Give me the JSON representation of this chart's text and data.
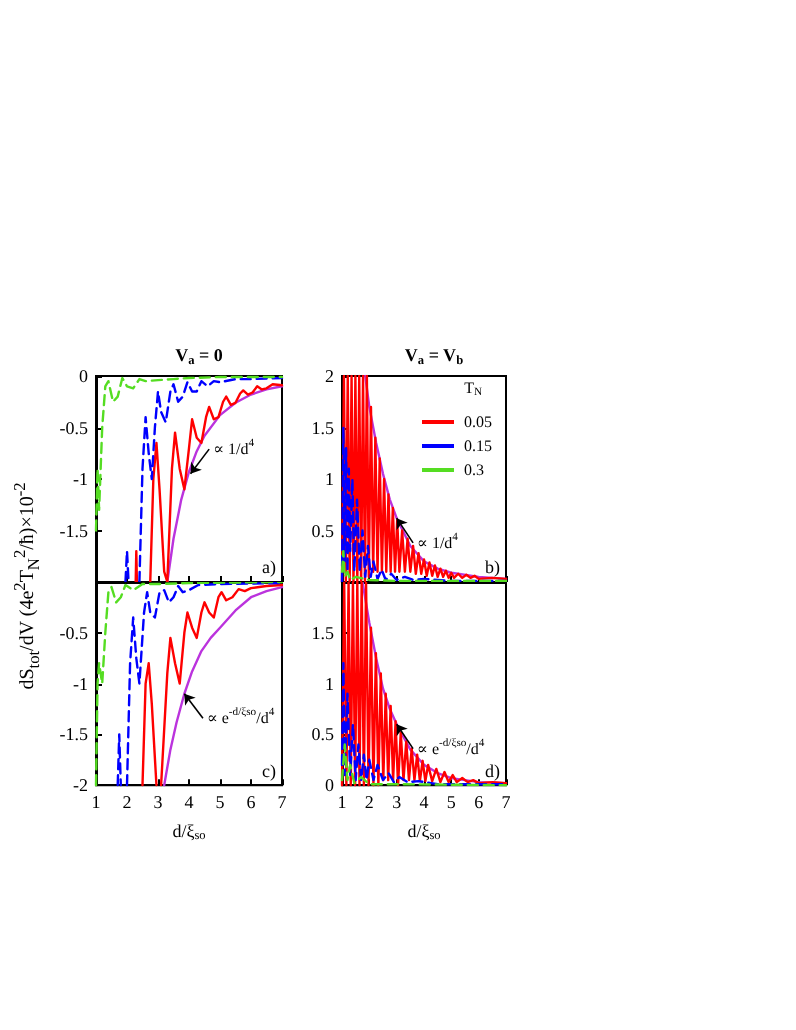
{
  "chart_data": [
    {
      "type": "line",
      "title": "V$_{a}$ = 0",
      "ylabel": "dS$_{tot}$/dV (4e$^{2}$T$_{N}$$^{2}$/ħ)×10$^{-2}$",
      "xlim": [
        1,
        7
      ],
      "xticks": [
        1,
        2,
        3,
        4,
        5,
        6,
        7
      ],
      "ylim": [
        -2,
        0
      ],
      "yticks": [
        {
          "value": -2,
          "label": null
        },
        -1.5,
        -1,
        -0.5,
        0
      ],
      "tick_labels": "y",
      "grid": false,
      "annotations": [
        {
          "text": "∝ 1/d$^{4}$",
          "x": 4.05,
          "y": -0.95
        },
        "a)"
      ],
      "series": [
        {
          "color": "#bb33dd",
          "line_style": "solid",
          "x": [
            3.3,
            3.5,
            3.75,
            4,
            4.25,
            4.5,
            5,
            5.5,
            6,
            6.5,
            7
          ],
          "values": [
            -2,
            -1.58,
            -1.2,
            -0.93,
            -0.73,
            -0.58,
            -0.38,
            -0.26,
            -0.18,
            -0.13,
            -0.1
          ]
        },
        {
          "color": "#ff0000",
          "line_style": "solid",
          "x": [
            2.28,
            2.3,
            2.32,
            2.5,
            2.75,
            2.85,
            2.95,
            3.05,
            3.2,
            3.3,
            3.45,
            3.55,
            3.7,
            3.85,
            4.0,
            4.1,
            4.25,
            4.4,
            4.55,
            4.65,
            4.8,
            4.95,
            5.1,
            5.2,
            5.35,
            5.5,
            5.65,
            5.75,
            5.9,
            6.05,
            6.2,
            6.35,
            6.5,
            6.7,
            7
          ],
          "values": [
            -2,
            -1.7,
            -2,
            null,
            -2,
            -1.0,
            -0.65,
            -1.1,
            -1.9,
            -2,
            -0.9,
            -0.55,
            -0.9,
            -1.1,
            -0.7,
            -0.42,
            -0.6,
            -0.65,
            -0.4,
            -0.3,
            -0.42,
            -0.4,
            -0.25,
            -0.2,
            -0.28,
            -0.26,
            -0.17,
            -0.14,
            -0.18,
            -0.16,
            -0.1,
            -0.13,
            -0.12,
            -0.08,
            -0.09
          ]
        },
        {
          "color": "#0000ff",
          "line_style": "dashed",
          "x": [
            1.95,
            2.0,
            2.05,
            2.2,
            2.4,
            2.5,
            2.6,
            2.7,
            2.8,
            2.9,
            3.0,
            3.1,
            3.25,
            3.4,
            3.5,
            3.65,
            3.8,
            3.95,
            4.1,
            4.25,
            4.4,
            4.6,
            4.8,
            5.0,
            5.5,
            6,
            7
          ],
          "values": [
            -2,
            -1.7,
            -2,
            null,
            -2,
            -0.9,
            -0.4,
            -0.75,
            -1.0,
            -0.5,
            -0.15,
            -0.35,
            -0.45,
            -0.15,
            -0.08,
            -0.25,
            -0.2,
            -0.06,
            -0.15,
            -0.15,
            -0.05,
            -0.1,
            -0.05,
            -0.06,
            -0.03,
            -0.03,
            -0.02
          ]
        },
        {
          "color": "#55dd22",
          "line_style": "dashed",
          "x": [
            1.0,
            1.05,
            1.1,
            1.15,
            1.2,
            1.3,
            1.4,
            1.55,
            1.7,
            1.85,
            2.0,
            2.2,
            2.4,
            2.6,
            3,
            3.5,
            4,
            5,
            7
          ],
          "values": [
            -1.5,
            -0.9,
            -1.3,
            -0.9,
            -0.5,
            -0.1,
            -0.05,
            -0.25,
            -0.2,
            -0.02,
            -0.1,
            -0.12,
            -0.03,
            -0.05,
            -0.04,
            -0.03,
            -0.02,
            -0.01,
            -0.01
          ]
        }
      ]
    },
    {
      "type": "line",
      "title": "V$_{a}$ = V$_{b}$",
      "legend": "top right",
      "legend_title": "T$_{N}$",
      "xlim": [
        1,
        7
      ],
      "xticks": [
        1,
        2,
        3,
        4,
        5,
        6,
        7
      ],
      "ylim": [
        0,
        2
      ],
      "yticks": [
        {
          "value": 0,
          "label": null
        },
        0.5,
        1,
        1.5,
        2
      ],
      "tick_labels": "y",
      "grid": false,
      "annotations": [
        {
          "text": "∝ 1/d$^{4}$",
          "x": 3.0,
          "y": 0.62
        },
        "b)"
      ],
      "series": [
        {
          "color": "#bb33dd",
          "line_style": "solid",
          "x": [
            1.85,
            2,
            2.25,
            2.5,
            2.75,
            3,
            3.5,
            4,
            4.5,
            5,
            6,
            7
          ],
          "values": [
            2,
            1.7,
            1.35,
            1.05,
            0.8,
            0.62,
            0.35,
            0.2,
            0.13,
            0.09,
            0.05,
            0.03
          ]
        },
        {
          "name": "0.05",
          "color": "#ff0000",
          "line_style": "solid",
          "x": [
            1.0,
            1.07,
            1.14,
            1.21,
            1.28,
            1.35,
            1.42,
            1.49,
            1.56,
            1.63,
            1.7,
            1.77,
            1.84,
            1.91,
            1.98,
            2.06,
            2.14,
            2.22,
            2.3,
            2.38,
            2.46,
            2.54,
            2.62,
            2.7,
            2.78,
            2.86,
            2.94,
            3.02,
            3.1,
            3.2,
            3.3,
            3.4,
            3.5,
            3.6,
            3.7,
            3.8,
            3.9,
            4.0,
            4.1,
            4.2,
            4.3,
            4.4,
            4.5,
            4.6,
            4.7,
            4.8,
            4.9,
            5.0,
            5.1,
            5.25,
            5.4,
            5.55,
            5.7,
            5.85,
            6.0,
            6.5,
            7
          ],
          "values": [
            0,
            2,
            0,
            2,
            0,
            2,
            0,
            2,
            0,
            2,
            0,
            2,
            0,
            2,
            0.05,
            1.7,
            0.1,
            1.4,
            0.1,
            1.2,
            0.1,
            1.0,
            0.1,
            0.85,
            0.1,
            0.72,
            0.1,
            0.6,
            0.1,
            0.5,
            0.1,
            0.42,
            0.1,
            0.35,
            0.08,
            0.28,
            0.08,
            0.22,
            0.06,
            0.19,
            0.06,
            0.16,
            0.05,
            0.13,
            0.05,
            0.11,
            0.04,
            0.09,
            0.04,
            0.08,
            0.04,
            0.07,
            0.04,
            0.06,
            0.03,
            0.04,
            0.03
          ]
        },
        {
          "name": "0.15",
          "color": "#0000ff",
          "line_style": "dashed",
          "x": [
            1.0,
            1.05,
            1.1,
            1.15,
            1.2,
            1.25,
            1.3,
            1.38,
            1.45,
            1.55,
            1.65,
            1.75,
            1.85,
            1.95,
            2.05,
            2.15,
            2.3,
            2.45,
            2.6,
            2.8,
            3,
            3.3,
            3.6,
            4,
            5,
            7
          ],
          "values": [
            0,
            1.5,
            0.2,
            1.3,
            0.1,
            1.1,
            0.3,
            1.0,
            0.1,
            0.8,
            0.1,
            0.5,
            0.05,
            0.35,
            0.05,
            0.2,
            0.03,
            0.12,
            0.02,
            0.08,
            0.02,
            0.05,
            0.02,
            0.03,
            0.01,
            0.01
          ]
        },
        {
          "name": "0.3",
          "color": "#55dd22",
          "line_style": "dashed",
          "x": [
            1.0,
            1.05,
            1.1,
            1.2,
            1.3,
            1.5,
            2,
            3,
            7
          ],
          "values": [
            0.1,
            0.3,
            0.05,
            0.1,
            0.02,
            0.05,
            0.02,
            0.01,
            0.01
          ]
        }
      ]
    },
    {
      "type": "line",
      "xlabel": "d/ξ$_{so}$",
      "xlim": [
        1,
        7
      ],
      "xticks": [
        1,
        2,
        3,
        4,
        5,
        6,
        7
      ],
      "ylim": [
        -2,
        0
      ],
      "yticks": [
        -2,
        -1.5,
        -1,
        -0.5,
        {
          "value": 0,
          "label": null
        }
      ],
      "grid": false,
      "annotations": [
        {
          "text": "∝ e$^{-d/ξso}$/d$^{4}$",
          "x": 3.85,
          "y": -1.1
        },
        "c)"
      ],
      "series": [
        {
          "color": "#bb33dd",
          "line_style": "solid",
          "x": [
            3.2,
            3.4,
            3.6,
            3.85,
            4.1,
            4.4,
            4.7,
            5,
            5.5,
            6,
            6.5,
            7
          ],
          "values": [
            -2,
            -1.65,
            -1.38,
            -1.1,
            -0.88,
            -0.68,
            -0.55,
            -0.45,
            -0.28,
            -0.15,
            -0.09,
            -0.05
          ]
        },
        {
          "color": "#ff0000",
          "line_style": "solid",
          "x": [
            2.5,
            2.6,
            2.7,
            2.8,
            2.95,
            3.0,
            3.1,
            3.3,
            3.4,
            3.55,
            3.7,
            3.85,
            3.95,
            4.1,
            4.25,
            4.4,
            4.5,
            4.65,
            4.8,
            4.95,
            5.05,
            5.2,
            5.4,
            5.6,
            5.8,
            6.0,
            6.5,
            7
          ],
          "values": [
            -2,
            -1.0,
            -0.8,
            -1.2,
            -2,
            null,
            -2,
            -0.9,
            -0.55,
            -0.8,
            -1.0,
            -0.5,
            -0.3,
            -0.45,
            -0.55,
            -0.3,
            -0.2,
            -0.3,
            -0.35,
            -0.15,
            -0.1,
            -0.18,
            -0.15,
            -0.07,
            -0.09,
            -0.06,
            -0.04,
            -0.03
          ]
        },
        {
          "color": "#0000ff",
          "line_style": "dashed",
          "x": [
            1.7,
            1.75,
            1.8,
            1.9,
            2.0,
            2.1,
            2.2,
            2.3,
            2.4,
            2.55,
            2.65,
            2.75,
            2.9,
            3.05,
            3.2,
            3.35,
            3.5,
            3.65,
            3.8,
            4.0,
            4.3,
            5,
            7
          ],
          "values": [
            -2,
            -1.5,
            -2,
            null,
            -2,
            -0.8,
            -0.35,
            -0.75,
            -1.0,
            -0.3,
            -0.1,
            -0.3,
            -0.35,
            -0.1,
            -0.08,
            -0.2,
            -0.15,
            -0.04,
            -0.1,
            -0.08,
            -0.03,
            -0.02,
            -0.01
          ]
        },
        {
          "color": "#55dd22",
          "line_style": "dashed",
          "x": [
            1.0,
            1.05,
            1.1,
            1.2,
            1.3,
            1.4,
            1.5,
            1.65,
            1.8,
            1.95,
            2.2,
            2.5,
            3,
            4,
            7
          ],
          "values": [
            -2,
            -1.0,
            -0.8,
            -1.0,
            -0.5,
            -0.1,
            -0.05,
            -0.2,
            -0.15,
            -0.03,
            -0.08,
            -0.02,
            -0.02,
            -0.01,
            0
          ]
        }
      ]
    },
    {
      "type": "line",
      "xlabel": "d/ξ$_{so}$",
      "xlim": [
        1,
        7
      ],
      "xticks": [
        1,
        2,
        3,
        4,
        5,
        6,
        7
      ],
      "ylim": [
        0,
        2
      ],
      "yticks": [
        0,
        0.5,
        1,
        1.5,
        {
          "value": 2,
          "label": null
        }
      ],
      "grid": false,
      "annotations": [
        {
          "text": "∝ e$^{-d/ξso}$/d$^{4}$",
          "x": 3.0,
          "y": 0.6
        },
        "d)"
      ],
      "series": [
        {
          "color": "#bb33dd",
          "line_style": "solid",
          "x": [
            1.75,
            2,
            2.25,
            2.5,
            2.75,
            3,
            3.5,
            4,
            4.5,
            5,
            6,
            7
          ],
          "values": [
            2,
            1.6,
            1.25,
            0.95,
            0.75,
            0.6,
            0.35,
            0.2,
            0.12,
            0.07,
            0.03,
            0.02
          ]
        },
        {
          "color": "#ff0000",
          "line_style": "solid",
          "x": [
            1.0,
            1.08,
            1.16,
            1.24,
            1.32,
            1.4,
            1.48,
            1.56,
            1.64,
            1.72,
            1.8,
            1.88,
            1.97,
            2.06,
            2.15,
            2.24,
            2.33,
            2.42,
            2.51,
            2.6,
            2.69,
            2.78,
            2.87,
            2.96,
            3.05,
            3.15,
            3.25,
            3.35,
            3.45,
            3.55,
            3.65,
            3.75,
            3.85,
            3.95,
            4.05,
            4.15,
            4.3,
            4.45,
            4.6,
            4.75,
            4.9,
            5.05,
            5.2,
            5.4,
            5.6,
            5.8,
            6.0,
            6.5,
            7
          ],
          "values": [
            0,
            2,
            0,
            2,
            0,
            2,
            0,
            2,
            0,
            2,
            0,
            2,
            0,
            1.55,
            0,
            1.3,
            0,
            1.1,
            0.05,
            0.9,
            0.05,
            0.78,
            0.05,
            0.63,
            0,
            0.52,
            0.05,
            0.43,
            0.05,
            0.36,
            0.05,
            0.3,
            0.04,
            0.24,
            0.04,
            0.2,
            0.04,
            0.16,
            0.03,
            0.13,
            0.03,
            0.1,
            0.03,
            0.07,
            0.03,
            0.05,
            0.02,
            0.03,
            0.02
          ]
        },
        {
          "color": "#0000ff",
          "line_style": "dashed",
          "x": [
            1.0,
            1.05,
            1.1,
            1.2,
            1.3,
            1.4,
            1.5,
            1.6,
            1.7,
            1.8,
            1.9,
            2.0,
            2.15,
            2.3,
            2.5,
            2.7,
            2.9,
            3.1,
            3.4,
            3.8,
            4.5,
            7
          ],
          "values": [
            0.2,
            1.2,
            0.1,
            0.9,
            0.1,
            0.6,
            0.05,
            0.4,
            0.05,
            0.3,
            0.05,
            0.25,
            0.05,
            0.2,
            0.05,
            0.12,
            0.03,
            0.08,
            0.03,
            0.04,
            0.01,
            0.01
          ]
        },
        {
          "color": "#55dd22",
          "line_style": "dashed",
          "x": [
            1.0,
            1.1,
            1.2,
            1.3,
            1.45,
            1.7,
            2,
            3,
            7
          ],
          "values": [
            0.05,
            0.4,
            0.05,
            0.2,
            0.02,
            0.08,
            0.01,
            0.01,
            0
          ]
        }
      ]
    }
  ]
}
